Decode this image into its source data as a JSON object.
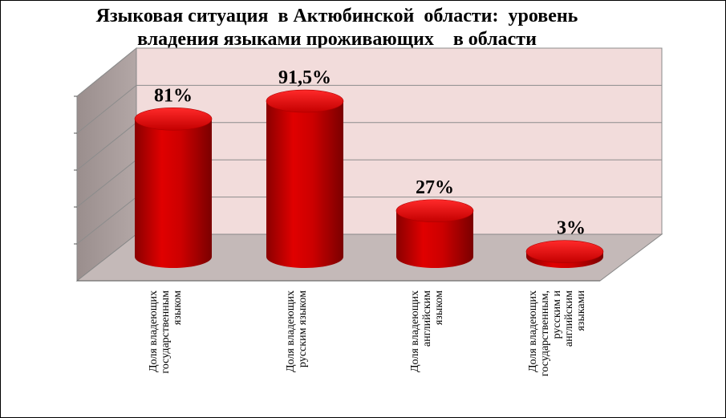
{
  "chart_data": {
    "type": "bar",
    "title_lines": [
      "Языковая ситуация  в Актюбинской  области:  уровень",
      "владения языками проживающих    в области"
    ],
    "categories": [
      [
        "Доля   владеющих",
        "государственным",
        "языком"
      ],
      [
        "Доля    владеющих",
        "русским языком"
      ],
      [
        "Доля   владеющих",
        "английским",
        "языком"
      ],
      [
        "Доля  владеющих",
        "государственным,",
        "русским и",
        "английским",
        "языками"
      ]
    ],
    "values": [
      81,
      91.5,
      27,
      3
    ],
    "value_labels": [
      "81%",
      "91,5%",
      "27%",
      "3%"
    ],
    "ylim": [
      0,
      100
    ],
    "grid": true,
    "bar_color": "#cc0000",
    "wall_color": "#f2dcdb",
    "floor_color": "#c4b9b8"
  }
}
